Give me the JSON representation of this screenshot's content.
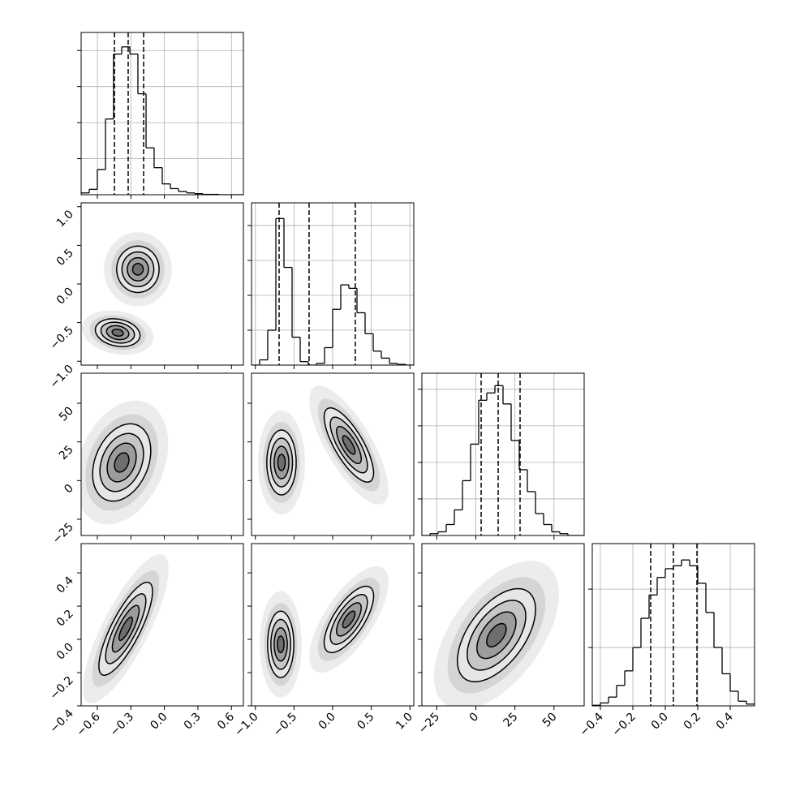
{
  "chart_data": [
    {
      "type": "histogram",
      "xlim": [
        -0.745,
        0.707
      ],
      "ylim": [
        0,
        4.5
      ],
      "xticks": [
        -0.6,
        -0.3,
        0,
        0.3,
        0.6
      ],
      "yticks": [
        1,
        2,
        3,
        4
      ],
      "grid": true,
      "color": "#000000",
      "bins": [
        -0.745,
        -0.672,
        -0.6,
        -0.527,
        -0.455,
        -0.382,
        -0.309,
        -0.237,
        -0.164,
        -0.092,
        -0.019,
        0.053,
        0.126,
        0.199,
        0.271,
        0.344,
        0.417,
        0.489,
        0.562,
        0.634,
        0.707
      ],
      "counts": [
        0.05,
        0.15,
        0.7,
        2.1,
        3.9,
        4.1,
        3.9,
        2.8,
        1.3,
        0.75,
        0.3,
        0.17,
        0.09,
        0.05,
        0.03,
        0.01,
        0.01,
        0,
        0,
        0
      ],
      "quantiles": [
        -0.447,
        -0.324,
        -0.186
      ]
    },
    {
      "type": "contour",
      "xlim": [
        -0.745,
        0.707
      ],
      "ylim": [
        -1.05,
        1.05
      ],
      "xticks": [
        -0.6,
        -0.3,
        0,
        0.3,
        0.6
      ],
      "yticks": [
        {
          "value": -1,
          "label": "−1.0"
        },
        {
          "value": -0.5,
          "label": "−0.5"
        },
        {
          "value": 0,
          "label": "0.0"
        },
        0.5,
        {
          "value": 1,
          "label": "1.0"
        }
      ],
      "levels": [
        0.5,
        1,
        1.5,
        2
      ],
      "blobs": [
        {
          "cx": -0.237,
          "cy": 0.19,
          "sx": 0.095,
          "sy": 0.15,
          "rho": 0
        },
        {
          "cx": -0.418,
          "cy": -0.63,
          "sx": 0.1,
          "sy": 0.09,
          "rho": -0.2
        }
      ]
    },
    {
      "type": "histogram",
      "xlim": [
        -1.05,
        1.05
      ],
      "ylim": [
        0,
        4.65
      ],
      "xticks": [
        -1,
        -0.5,
        0,
        0.5,
        1
      ],
      "yticks": [
        1,
        2,
        3,
        4
      ],
      "grid": true,
      "color": "#000000",
      "bins": [
        -1.05,
        -0.945,
        -0.84,
        -0.735,
        -0.63,
        -0.525,
        -0.42,
        -0.315,
        -0.21,
        -0.105,
        0,
        0.105,
        0.21,
        0.315,
        0.42,
        0.525,
        0.63,
        0.735,
        0.84,
        0.945,
        1.05
      ],
      "counts": [
        0,
        0.15,
        1.0,
        4.2,
        2.8,
        0.8,
        0.1,
        0,
        0.05,
        0.5,
        1.6,
        2.3,
        2.2,
        1.5,
        0.9,
        0.4,
        0.2,
        0.05,
        0.02,
        0
      ],
      "quantiles": [
        -0.693,
        -0.305,
        0.293
      ]
    },
    {
      "type": "contour",
      "xlim": [
        -0.745,
        0.707
      ],
      "ylim": [
        -35.5,
        69.4
      ],
      "xticks": [
        -0.6,
        -0.3,
        0,
        0.3,
        0.6
      ],
      "yticks": [
        {
          "value": -25,
          "label": "−25"
        },
        0,
        25,
        50
      ],
      "levels": [
        0.5,
        1,
        1.5,
        2
      ],
      "blobs": [
        {
          "cx": -0.382,
          "cy": 11.7,
          "sx": 0.13,
          "sy": 12.5,
          "rho": 0.3
        }
      ]
    },
    {
      "type": "contour",
      "xlim": [
        -1.05,
        1.05
      ],
      "ylim": [
        -35.5,
        69.4
      ],
      "xticks": [
        -1,
        -0.5,
        0,
        0.5,
        1
      ],
      "yticks": [
        -25,
        0,
        25,
        50
      ],
      "levels": [
        0.5,
        1,
        1.5,
        2
      ],
      "blobs": [
        {
          "cx": -0.662,
          "cy": 11.7,
          "sx": 0.095,
          "sy": 10.5,
          "rho": 0
        },
        {
          "cx": 0.21,
          "cy": 23,
          "sx": 0.16,
          "sy": 12,
          "rho": -0.75
        }
      ]
    },
    {
      "type": "histogram",
      "xlim": [
        -34.5,
        69.3
      ],
      "ylim": [
        0,
        4.44
      ],
      "xticks": [
        -25,
        0,
        25,
        50
      ],
      "yticks": [
        1,
        2,
        3,
        4
      ],
      "grid": true,
      "color": "#000000",
      "bins": [
        -34.5,
        -29.31,
        -24.12,
        -18.93,
        -13.74,
        -8.55,
        -3.36,
        1.83,
        7.02,
        12.21,
        17.4,
        22.59,
        27.78,
        32.97,
        38.16,
        43.35,
        48.54,
        53.73,
        58.92,
        64.11,
        69.3
      ],
      "counts": [
        0,
        0.05,
        0.1,
        0.3,
        0.7,
        1.5,
        2.5,
        3.7,
        3.9,
        4.1,
        3.6,
        2.6,
        1.8,
        1.2,
        0.6,
        0.3,
        0.1,
        0.05,
        0,
        0
      ],
      "quantiles": [
        3.4,
        14.3,
        28.3
      ]
    },
    {
      "type": "contour",
      "xlim": [
        -0.745,
        0.707
      ],
      "ylim": [
        -0.4,
        0.576
      ],
      "xticks": [
        {
          "value": -0.6,
          "label": "−0.6"
        },
        {
          "value": -0.3,
          "label": "−0.3"
        },
        {
          "value": 0,
          "label": "0.0"
        },
        0.3,
        0.6
      ],
      "yticks": [
        {
          "value": -0.4,
          "label": "−0.4"
        },
        {
          "value": -0.2,
          "label": "−0.2"
        },
        {
          "value": 0,
          "label": "0.0"
        },
        0.2,
        0.4
      ],
      "levels": [
        0.5,
        1,
        1.5,
        2
      ],
      "blobs": [
        {
          "cx": -0.346,
          "cy": 0.064,
          "sx": 0.12,
          "sy": 0.14,
          "rho": 0.8
        }
      ]
    },
    {
      "type": "contour",
      "xlim": [
        -1.05,
        1.05
      ],
      "ylim": [
        -0.4,
        0.576
      ],
      "xticks": [
        {
          "value": -1,
          "label": "−1.0"
        },
        {
          "value": -0.5,
          "label": "−0.5"
        },
        {
          "value": 0,
          "label": "0.0"
        },
        0.5,
        {
          "value": 1,
          "label": "1.0"
        }
      ],
      "yticks": [
        -0.4,
        -0.2,
        0,
        0.2,
        0.4
      ],
      "levels": [
        0.5,
        1,
        1.5,
        2
      ],
      "blobs": [
        {
          "cx": -0.672,
          "cy": -0.03,
          "sx": 0.085,
          "sy": 0.1,
          "rho": 0
        },
        {
          "cx": 0.21,
          "cy": 0.12,
          "sx": 0.16,
          "sy": 0.1,
          "rho": 0.7
        }
      ]
    },
    {
      "type": "contour",
      "xlim": [
        -34.5,
        69.3
      ],
      "ylim": [
        -0.4,
        0.576
      ],
      "xticks": [
        {
          "value": -25,
          "label": "−25"
        },
        0,
        25,
        50
      ],
      "yticks": [
        -0.4,
        -0.2,
        0,
        0.2,
        0.4
      ],
      "levels": [
        0.5,
        1,
        1.5,
        2
      ],
      "blobs": [
        {
          "cx": 13.2,
          "cy": 0.025,
          "sx": 12.5,
          "sy": 0.14,
          "rho": 0.55
        }
      ]
    },
    {
      "type": "histogram",
      "xlim": [
        -0.45,
        0.55
      ],
      "ylim": [
        0,
        2.78
      ],
      "xticks": [
        {
          "value": -0.4,
          "label": "−0.4"
        },
        {
          "value": -0.2,
          "label": "−0.2"
        },
        {
          "value": 0,
          "label": "0.0"
        },
        0.2,
        0.4
      ],
      "yticks": [
        1,
        2
      ],
      "grid": true,
      "color": "#000000",
      "bins": [
        -0.45,
        -0.4,
        -0.35,
        -0.3,
        -0.25,
        -0.2,
        -0.15,
        -0.1,
        -0.05,
        0,
        0.05,
        0.1,
        0.15,
        0.2,
        0.25,
        0.3,
        0.35,
        0.4,
        0.45,
        0.5,
        0.55
      ],
      "counts": [
        0.01,
        0.05,
        0.15,
        0.35,
        0.6,
        1.0,
        1.5,
        1.9,
        2.2,
        2.35,
        2.4,
        2.5,
        2.4,
        2.1,
        1.6,
        1.0,
        0.55,
        0.25,
        0.08,
        0.03
      ],
      "quantiles": [
        -0.09,
        0.05,
        0.195
      ]
    }
  ]
}
